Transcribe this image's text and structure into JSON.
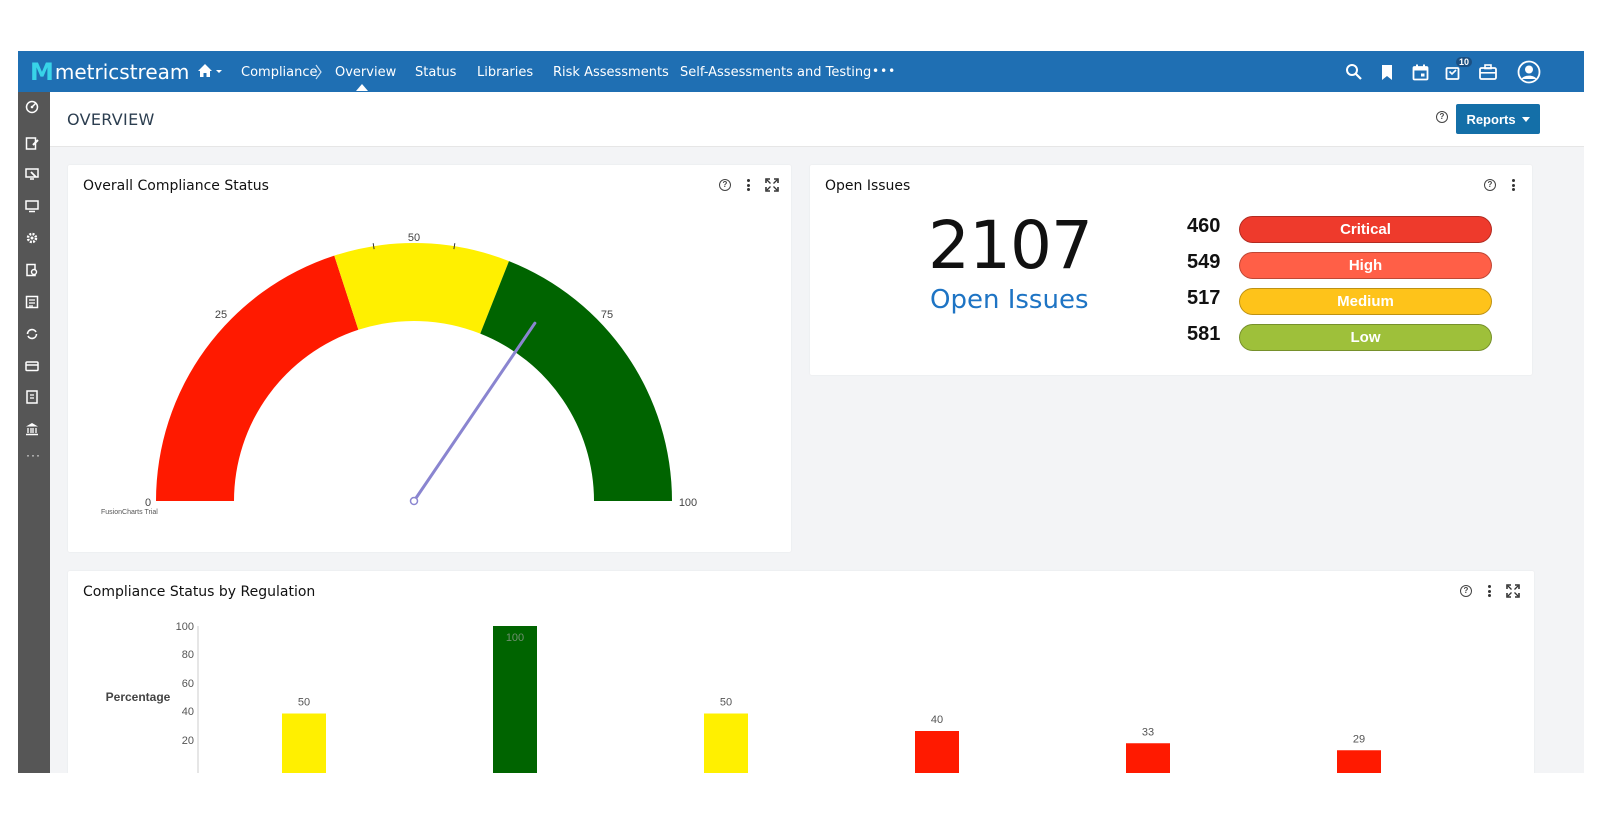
{
  "topbar": {
    "brand": "metricstream",
    "breadcrumb_module": "Compliance",
    "nav": [
      "Overview",
      "Status",
      "Libraries",
      "Risk Assessments",
      "Self-Assessments and Testing"
    ],
    "more": "•••",
    "notification_count": "10",
    "colors": {
      "bar": "#1f6fb3",
      "logo_accent": "#38d3e8"
    },
    "icons": [
      "search-icon",
      "bookmark-icon",
      "calendar-icon",
      "notifications-icon",
      "briefcase-icon",
      "user-avatar-icon"
    ]
  },
  "rail": {
    "icons": [
      "dashboard-icon",
      "edit-document-icon",
      "monitor-edit-icon",
      "monitor-icon",
      "settings-badge-icon",
      "search-document-icon",
      "checklist-icon",
      "sync-icon",
      "card-icon",
      "report-icon",
      "bank-icon",
      "more-icon"
    ],
    "more": "···"
  },
  "page": {
    "title": "OVERVIEW",
    "reports_button": "Reports"
  },
  "gauge": {
    "title": "Overall Compliance Status",
    "ticks": [
      "0",
      "25",
      "50",
      "75",
      "100"
    ],
    "watermark": "FusionCharts Trial",
    "chart_data": {
      "type": "gauge",
      "min": 0,
      "max": 100,
      "bands": [
        {
          "from": 0,
          "to": 40,
          "color": "#ff1a00"
        },
        {
          "from": 40,
          "to": 62,
          "color": "#fff000"
        },
        {
          "from": 62,
          "to": 100,
          "color": "#006400"
        }
      ],
      "value": 69
    }
  },
  "issues": {
    "title": "Open Issues",
    "total": "2107",
    "label": "Open Issues",
    "rows": [
      {
        "count": "460",
        "label": "Critical",
        "cls": "critical"
      },
      {
        "count": "549",
        "label": "High",
        "cls": "high"
      },
      {
        "count": "517",
        "label": "Medium",
        "cls": "medium"
      },
      {
        "count": "581",
        "label": "Low",
        "cls": "low"
      }
    ]
  },
  "bars": {
    "title": "Compliance Status by Regulation",
    "chart_data": {
      "type": "bar",
      "ylabel": "Percentage",
      "ylim": [
        0,
        100
      ],
      "yticks": [
        "100",
        "80",
        "60",
        "40",
        "20"
      ],
      "values": [
        50,
        100,
        50,
        40,
        33,
        29
      ],
      "value_labels": [
        "50",
        "100",
        "50",
        "40",
        "33",
        "29"
      ],
      "colors": [
        "#fff000",
        "#006400",
        "#fff000",
        "#ff1a00",
        "#ff1a00",
        "#ff1a00"
      ]
    }
  }
}
